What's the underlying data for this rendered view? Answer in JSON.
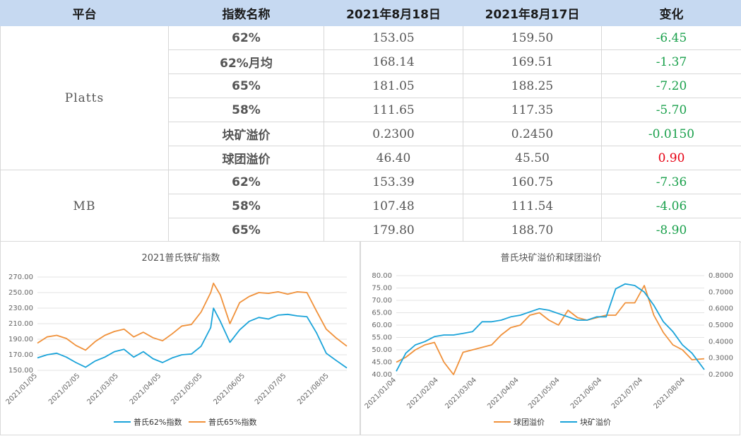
{
  "table": {
    "headers": [
      "平台",
      "指数名称",
      "2021年8月18日",
      "2021年8月17日",
      "变化"
    ],
    "groups": [
      {
        "platform": "Platts",
        "rows": [
          {
            "name": "62%",
            "d18": "153.05",
            "d17": "159.50",
            "change": "-6.45"
          },
          {
            "name": "62%月均",
            "d18": "168.14",
            "d17": "169.51",
            "change": "-1.37"
          },
          {
            "name": "65%",
            "d18": "181.05",
            "d17": "188.25",
            "change": "-7.20"
          },
          {
            "name": "58%",
            "d18": "111.65",
            "d17": "117.35",
            "change": "-5.70"
          },
          {
            "name": "块矿溢价",
            "d18": "0.2300",
            "d17": "0.2450",
            "change": "-0.0150"
          },
          {
            "name": "球团溢价",
            "d18": "46.40",
            "d17": "45.50",
            "change": "0.90"
          }
        ]
      },
      {
        "platform": "MB",
        "rows": [
          {
            "name": "62%",
            "d18": "153.39",
            "d17": "160.75",
            "change": "-7.36"
          },
          {
            "name": "58%",
            "d18": "107.48",
            "d17": "111.54",
            "change": "-4.06"
          },
          {
            "name": "65%",
            "d18": "179.80",
            "d17": "188.70",
            "change": "-8.90"
          }
        ]
      }
    ],
    "colors": {
      "negative": "#19a04b",
      "positive": "#e60012",
      "header_bg": "#c6d9f1"
    }
  },
  "chart_data": [
    {
      "type": "line",
      "title": "2021普氏铁矿指数",
      "x_tick_labels": [
        "2021/01/05",
        "2021/02/05",
        "2021/03/05",
        "2021/04/05",
        "2021/05/05",
        "2021/06/05",
        "2021/07/05",
        "2021/08/05"
      ],
      "x": [
        "2021-01-05",
        "2021-01-12",
        "2021-01-19",
        "2021-01-26",
        "2021-02-02",
        "2021-02-09",
        "2021-02-16",
        "2021-02-23",
        "2021-03-02",
        "2021-03-09",
        "2021-03-16",
        "2021-03-23",
        "2021-03-30",
        "2021-04-06",
        "2021-04-13",
        "2021-04-20",
        "2021-04-27",
        "2021-05-04",
        "2021-05-11",
        "2021-05-13",
        "2021-05-18",
        "2021-05-25",
        "2021-06-01",
        "2021-06-08",
        "2021-06-15",
        "2021-06-22",
        "2021-06-29",
        "2021-07-06",
        "2021-07-13",
        "2021-07-20",
        "2021-07-27",
        "2021-08-03",
        "2021-08-10",
        "2021-08-18"
      ],
      "ylim": [
        150,
        270
      ],
      "y_ticks": [
        "150.00",
        "170.00",
        "190.00",
        "210.00",
        "230.00",
        "250.00",
        "270.00"
      ],
      "legend": "bottom",
      "series": [
        {
          "name": "普氏62%指数",
          "color": "#1aa3d9",
          "values": [
            166,
            170,
            172,
            167,
            160,
            154,
            162,
            167,
            174,
            177,
            167,
            174,
            165,
            160,
            166,
            170,
            171,
            181,
            205,
            230,
            213,
            186,
            202,
            213,
            218,
            216,
            221,
            222,
            220,
            219,
            198,
            172,
            163,
            153.05
          ]
        },
        {
          "name": "普氏65%指数",
          "color": "#f0913a",
          "values": [
            185,
            193,
            195,
            191,
            182,
            176,
            187,
            195,
            200,
            203,
            193,
            199,
            192,
            188,
            197,
            207,
            209,
            225,
            250,
            262,
            247,
            210,
            237,
            245,
            250,
            249,
            251,
            248,
            251,
            250,
            226,
            203,
            192,
            181.05
          ]
        }
      ]
    },
    {
      "type": "line",
      "title": "普氏块矿溢价和球团溢价",
      "x_tick_labels": [
        "2021/01/04",
        "2021/02/04",
        "2021/03/04",
        "2021/04/04",
        "2021/05/04",
        "2021/06/04",
        "2021/07/04",
        "2021/08/04"
      ],
      "x": [
        "2021-01-04",
        "2021-01-11",
        "2021-01-18",
        "2021-01-25",
        "2021-02-01",
        "2021-02-08",
        "2021-02-15",
        "2021-02-22",
        "2021-03-01",
        "2021-03-08",
        "2021-03-15",
        "2021-03-22",
        "2021-03-29",
        "2021-04-05",
        "2021-04-12",
        "2021-04-19",
        "2021-04-26",
        "2021-05-03",
        "2021-05-10",
        "2021-05-17",
        "2021-05-24",
        "2021-05-31",
        "2021-06-07",
        "2021-06-14",
        "2021-06-21",
        "2021-06-28",
        "2021-07-05",
        "2021-07-12",
        "2021-07-19",
        "2021-07-26",
        "2021-08-02",
        "2021-08-09",
        "2021-08-18"
      ],
      "y_left_ticks": [
        "40.00",
        "45.00",
        "50.00",
        "55.00",
        "60.00",
        "65.00",
        "70.00",
        "75.00",
        "80.00"
      ],
      "y_right_ticks": [
        "0.2000",
        "0.3000",
        "0.4000",
        "0.5000",
        "0.6000",
        "0.7000",
        "0.8000"
      ],
      "ylim_left": [
        40,
        80
      ],
      "ylim_right": [
        0.2,
        0.8
      ],
      "legend": "bottom",
      "series": [
        {
          "name": "球团溢价",
          "axis": "left",
          "color": "#f0913a",
          "values": [
            45,
            47,
            50,
            52,
            53,
            45,
            40,
            49,
            50,
            51,
            52,
            56,
            59,
            60,
            64,
            65,
            62,
            60,
            66,
            63,
            62,
            63,
            64,
            64,
            69,
            69,
            76,
            64,
            57,
            52,
            50,
            46,
            46.4
          ]
        },
        {
          "name": "块矿溢价",
          "axis": "right",
          "color": "#1aa3d9",
          "values": [
            0.22,
            0.33,
            0.38,
            0.4,
            0.43,
            0.44,
            0.44,
            0.45,
            0.46,
            0.52,
            0.52,
            0.53,
            0.55,
            0.56,
            0.58,
            0.6,
            0.59,
            0.57,
            0.55,
            0.53,
            0.53,
            0.55,
            0.55,
            0.72,
            0.75,
            0.74,
            0.7,
            0.62,
            0.52,
            0.46,
            0.38,
            0.33,
            0.23
          ]
        }
      ]
    }
  ]
}
